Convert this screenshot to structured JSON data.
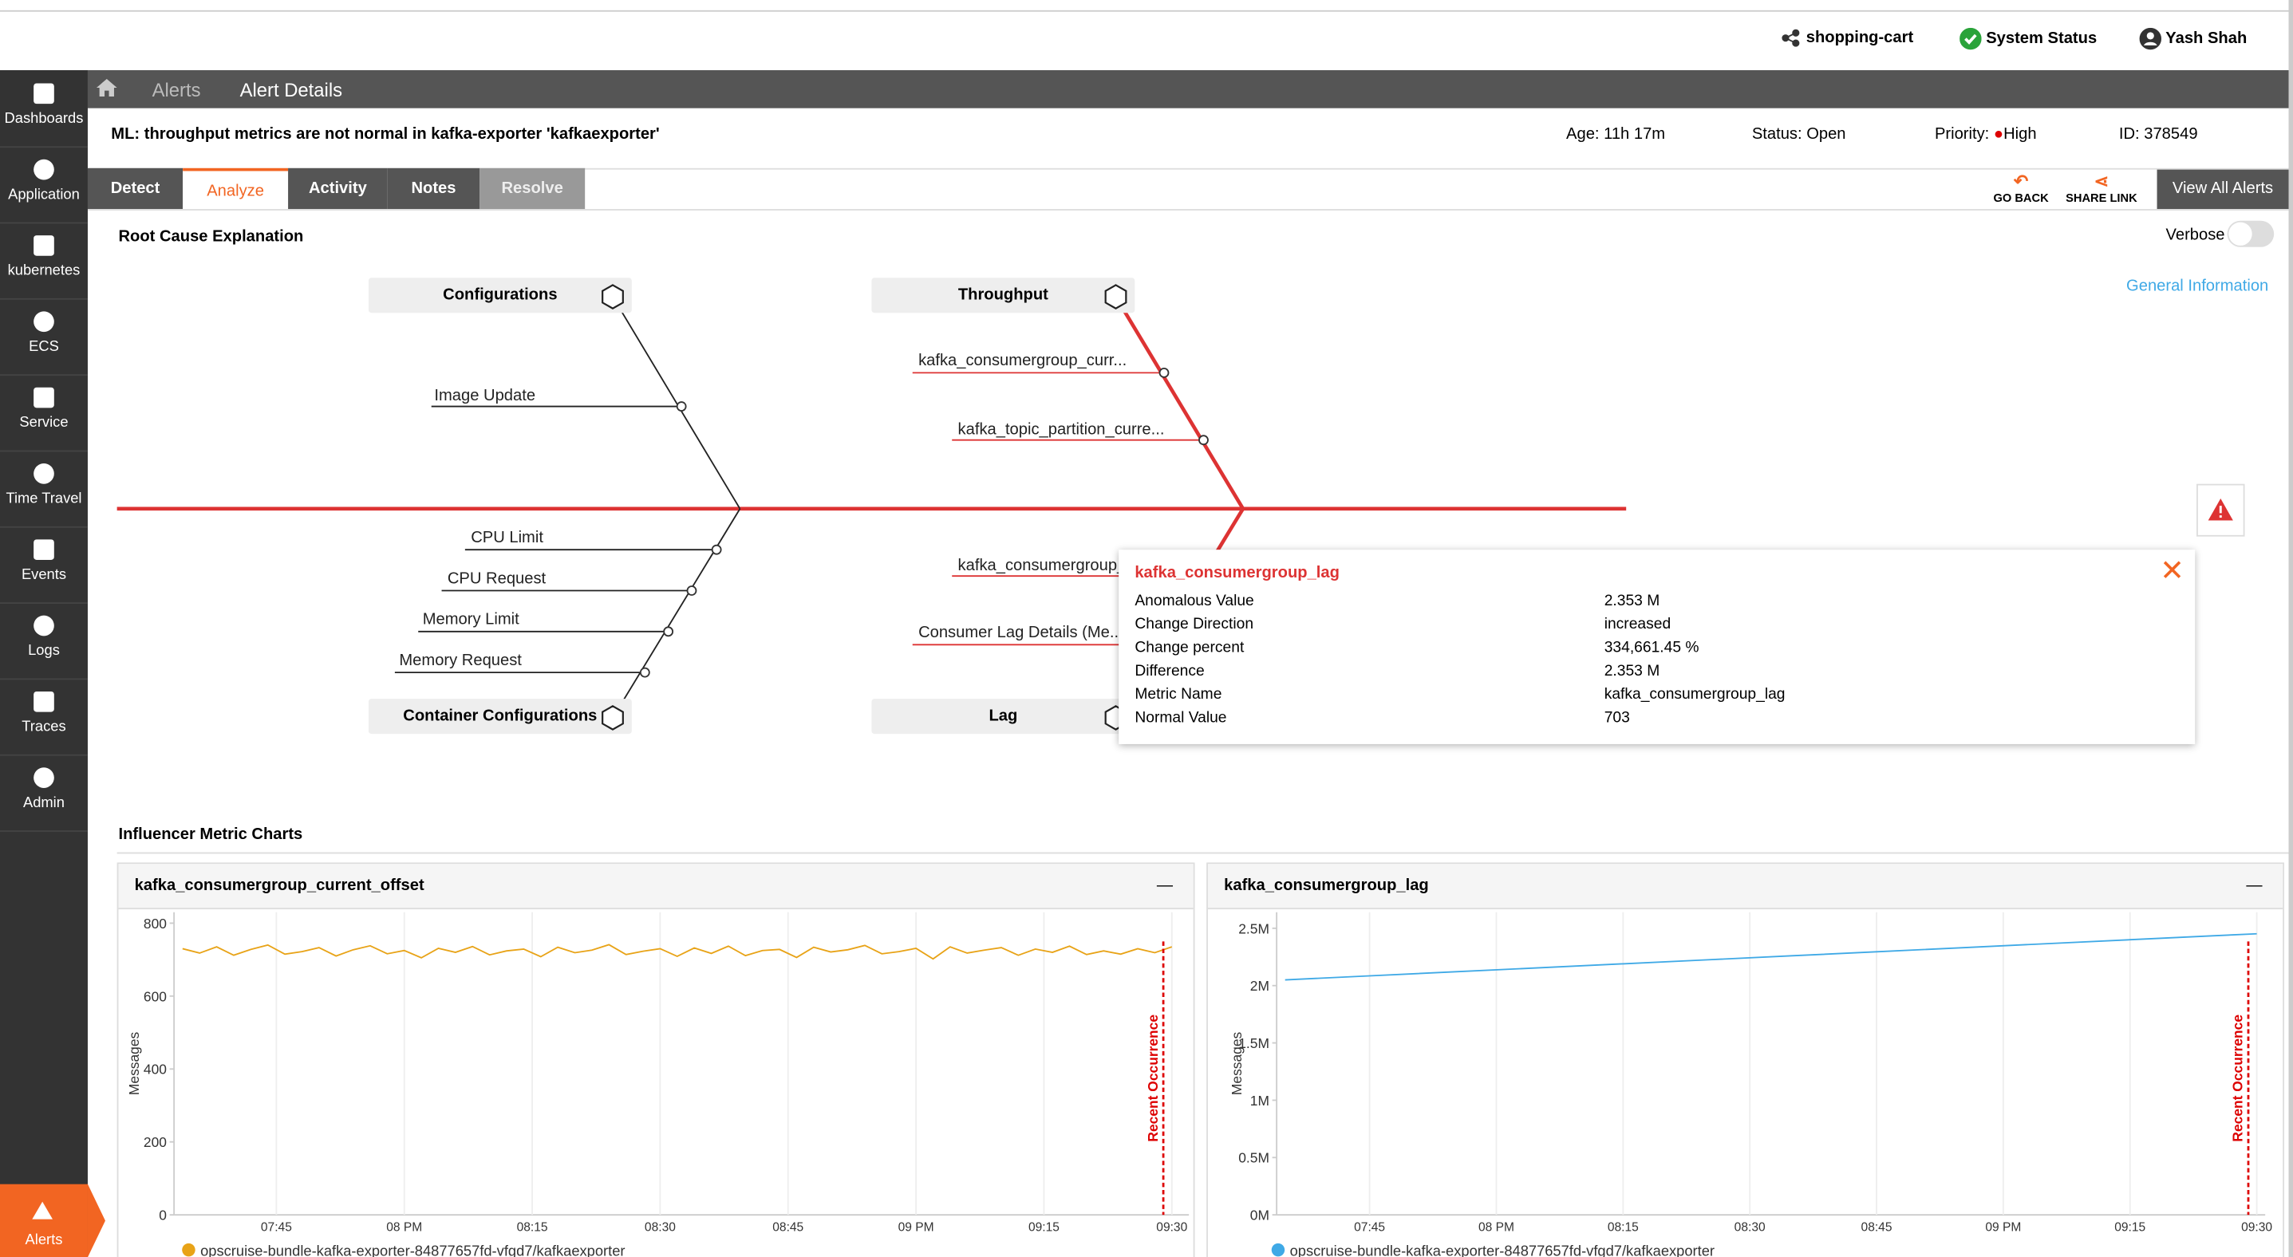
{
  "topbar": {
    "cluster": "shopping-cart",
    "status": "System Status",
    "user": "Yash Shah"
  },
  "sidebar": [
    "Dashboards",
    "Application",
    "kubernetes",
    "ECS",
    "Service",
    "Time Travel",
    "Events",
    "Logs",
    "Traces",
    "Admin"
  ],
  "alerts_nav": "Alerts",
  "breadcrumb": [
    "Alerts",
    "Alert Details"
  ],
  "alert": {
    "title": "ML: throughput metrics are not normal in kafka-exporter 'kafkaexporter'",
    "age": "Age: 11h 17m",
    "status": "Status: Open",
    "priority_label": "Priority:",
    "priority": "High",
    "id": "ID: 378549"
  },
  "tabs": [
    "Detect",
    "Analyze",
    "Activity",
    "Notes",
    "Resolve"
  ],
  "actions": {
    "go_back": "GO BACK",
    "share_link": "SHARE LINK",
    "view_all": "View All Alerts"
  },
  "root_cause": {
    "title": "Root Cause Explanation",
    "verbose": "Verbose",
    "general_info": "General Information",
    "categories": [
      "Configurations",
      "Throughput",
      "Container Configurations",
      "Lag"
    ],
    "causes": [
      "Image Update",
      "kafka_consumergroup_curr...",
      "kafka_topic_partition_curre...",
      "CPU Limit",
      "CPU Request",
      "Memory Limit",
      "Memory Request",
      "kafka_consumergroup_",
      "Consumer Lag Details (Me..."
    ]
  },
  "tooltip": {
    "title": "kafka_consumergroup_lag",
    "rows": [
      [
        "Anomalous Value",
        "2.353 M"
      ],
      [
        "Change Direction",
        "increased"
      ],
      [
        "Change percent",
        "334,661.45 %"
      ],
      [
        "Difference",
        "2.353 M"
      ],
      [
        "Metric Name",
        "kafka_consumergroup_lag"
      ],
      [
        "Normal Value",
        "703"
      ]
    ]
  },
  "influencer_title": "Influencer Metric Charts",
  "chart_data": [
    {
      "type": "line",
      "title": "kafka_consumergroup_current_offset",
      "y_label": "Messages",
      "xlim": [
        "19:33",
        "21:32"
      ],
      "xticks": [
        {
          "value": "19:45",
          "label": "07:45"
        },
        {
          "value": "20:00",
          "label": "08 PM"
        },
        {
          "value": "20:15",
          "label": "08:15"
        },
        {
          "value": "20:30",
          "label": "08:30"
        },
        {
          "value": "20:45",
          "label": "08:45"
        },
        {
          "value": "21:00",
          "label": "09 PM"
        },
        {
          "value": "21:15",
          "label": "09:15"
        },
        {
          "value": "21:30",
          "label": "09:30"
        }
      ],
      "ylim": [
        0,
        830
      ],
      "yticks": [
        0,
        200,
        400,
        600,
        800
      ],
      "grid": true,
      "x": [
        "19:34",
        "19:36",
        "19:38",
        "19:40",
        "19:42",
        "19:44",
        "19:46",
        "19:48",
        "19:50",
        "19:52",
        "19:54",
        "19:56",
        "19:58",
        "20:00",
        "20:02",
        "20:04",
        "20:06",
        "20:08",
        "20:10",
        "20:12",
        "20:14",
        "20:16",
        "20:18",
        "20:20",
        "20:22",
        "20:24",
        "20:26",
        "20:28",
        "20:30",
        "20:32",
        "20:34",
        "20:36",
        "20:38",
        "20:40",
        "20:42",
        "20:44",
        "20:46",
        "20:48",
        "20:50",
        "20:52",
        "20:54",
        "20:56",
        "20:58",
        "21:00",
        "21:02",
        "21:04",
        "21:06",
        "21:08",
        "21:10",
        "21:12",
        "21:14",
        "21:16",
        "21:18",
        "21:20",
        "21:22",
        "21:24",
        "21:26",
        "21:28",
        "21:30"
      ],
      "series": [
        {
          "name": "opscruise-bundle-kafka-exporter-84877657fd-vfgd7/kafkaexporter",
          "color": "#e8a317",
          "values": [
            730,
            718,
            735,
            712,
            728,
            740,
            715,
            722,
            733,
            710,
            727,
            738,
            716,
            725,
            705,
            731,
            720,
            736,
            713,
            724,
            729,
            708,
            734,
            719,
            726,
            741,
            714,
            723,
            730,
            709,
            732,
            717,
            737,
            711,
            725,
            728,
            706,
            734,
            721,
            727,
            739,
            716,
            722,
            731,
            702,
            735,
            718,
            726,
            733,
            712,
            729,
            720,
            737,
            714,
            724,
            715,
            730,
            719,
            735
          ]
        }
      ],
      "annotation": {
        "x": "21:29",
        "label": "Recent Occurrence"
      }
    },
    {
      "type": "line",
      "title": "kafka_consumergroup_lag",
      "y_label": "Messages",
      "xlim": [
        "19:34",
        "21:31"
      ],
      "xticks": [
        {
          "value": "19:45",
          "label": "07:45"
        },
        {
          "value": "20:00",
          "label": "08 PM"
        },
        {
          "value": "20:15",
          "label": "08:15"
        },
        {
          "value": "20:30",
          "label": "08:30"
        },
        {
          "value": "20:45",
          "label": "08:45"
        },
        {
          "value": "21:00",
          "label": "09 PM"
        },
        {
          "value": "21:15",
          "label": "09:15"
        },
        {
          "value": "21:30",
          "label": "09:30"
        }
      ],
      "ylim": [
        0,
        2640000
      ],
      "yticks": [
        {
          "value": 0,
          "label": "0M"
        },
        {
          "value": 500000,
          "label": "0.5M"
        },
        {
          "value": 1000000,
          "label": "1M"
        },
        {
          "value": 1500000,
          "label": "1.5M"
        },
        {
          "value": 2000000,
          "label": "2M"
        },
        {
          "value": 2500000,
          "label": "2.5M"
        }
      ],
      "grid": true,
      "x": [
        "19:35",
        "19:45",
        "19:55",
        "20:05",
        "20:15",
        "20:25",
        "20:35",
        "20:45",
        "20:55",
        "21:05",
        "21:15",
        "21:25",
        "21:30"
      ],
      "series": [
        {
          "name": "opscruise-bundle-kafka-exporter-84877657fd-vfgd7/kafkaexporter",
          "color": "#3fa9e6",
          "values": [
            2050000,
            2085000,
            2120000,
            2155000,
            2190000,
            2225000,
            2260000,
            2295000,
            2330000,
            2365000,
            2400000,
            2435000,
            2452000
          ]
        }
      ],
      "annotation": {
        "x": "21:29",
        "label": "Recent Occurrence"
      }
    }
  ]
}
